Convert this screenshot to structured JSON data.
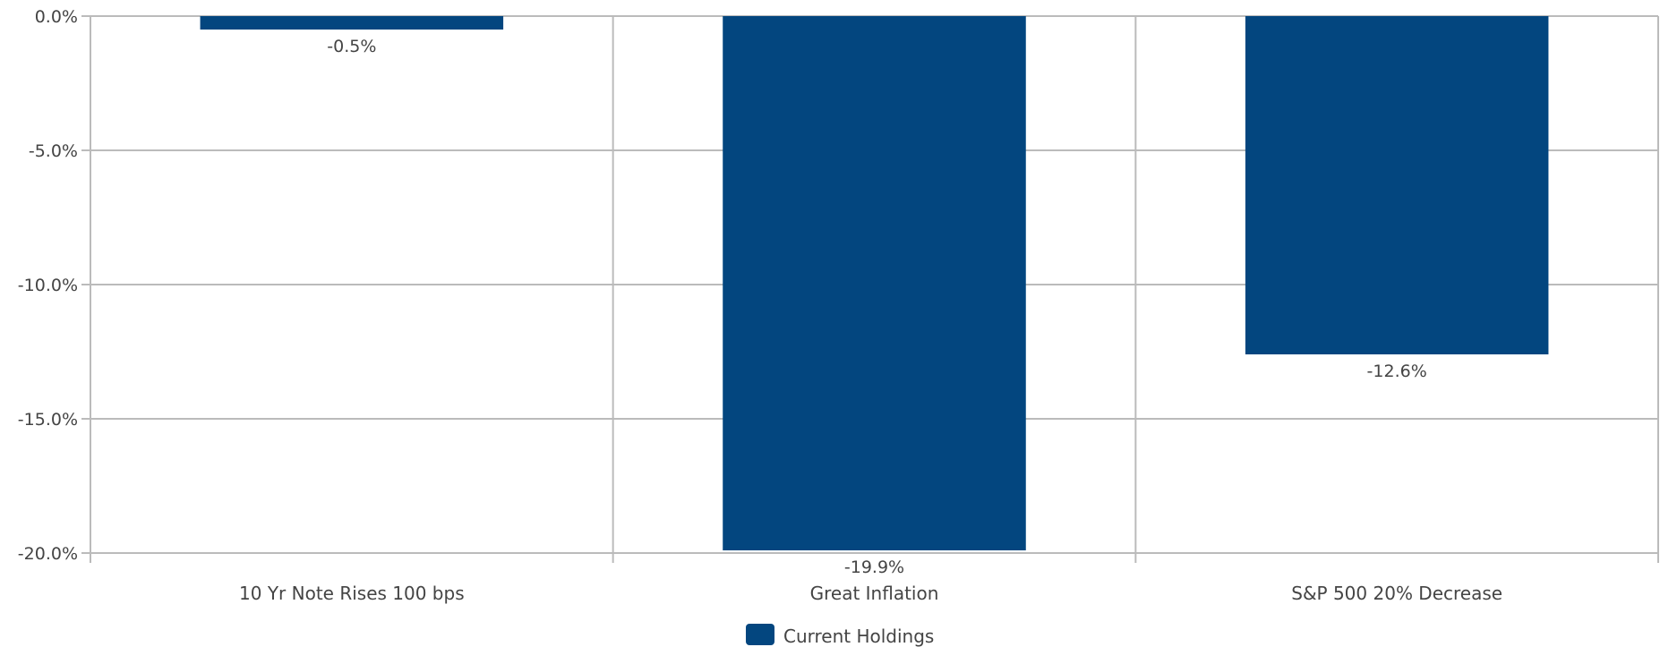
{
  "chart_data": {
    "type": "bar",
    "title": "",
    "xlabel": "",
    "ylabel": "",
    "categories": [
      "10 Yr Note Rises 100 bps",
      "Great Inflation",
      "S&P 500 20% Decrease"
    ],
    "series": [
      {
        "name": "Current Holdings",
        "values": [
          -0.5,
          -19.9,
          -12.6
        ],
        "color": "#03467f"
      }
    ],
    "data_labels": [
      "-0.5%",
      "-19.9%",
      "-12.6%"
    ],
    "ylim": [
      -20,
      0
    ],
    "yticks": [
      0,
      -5,
      -10,
      -15,
      -20
    ],
    "ytick_labels": [
      "0.0%",
      "-5.0%",
      "-10.0%",
      "-15.0%",
      "-20.0%"
    ],
    "grid": true,
    "grid_color": "#bbbbbb",
    "legend_position": "bottom-center"
  }
}
